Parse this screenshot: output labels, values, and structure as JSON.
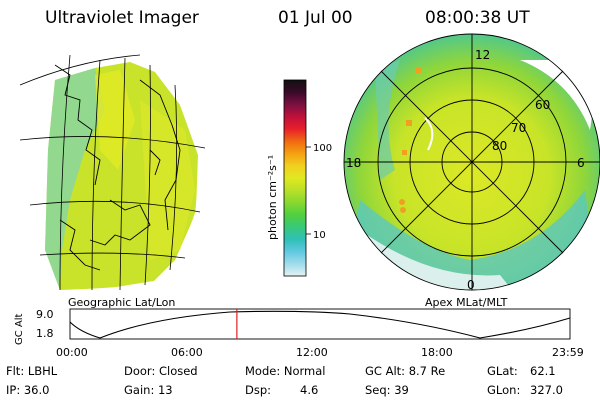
{
  "header": {
    "instrument": "Ultraviolet Imager",
    "date": "01 Jul 00",
    "time": "08:00:38 UT"
  },
  "colorbar": {
    "unit_label": "photon cm⁻²s⁻¹",
    "tick_labels": [
      "100",
      "10"
    ],
    "colors": [
      "#111111",
      "#3a0a2a",
      "#7a1040",
      "#c0103a",
      "#e8202a",
      "#f06a12",
      "#f5a010",
      "#f2d020",
      "#e0e820",
      "#b8e028",
      "#88d830",
      "#50d040",
      "#38c878",
      "#30c0b8",
      "#60c8e0",
      "#a0dcea",
      "#e4f2f4"
    ]
  },
  "left_panel": {
    "label": "Geographic Lat/Lon"
  },
  "right_panel": {
    "label": "Apex MLat/MLT",
    "lat_labels": [
      "80",
      "70",
      "60"
    ],
    "mlt_labels": [
      "12",
      "18",
      "6",
      "0"
    ]
  },
  "orbit_plot": {
    "ylabel": "GC Alt",
    "y_ticks": [
      "9.0",
      "1.8"
    ],
    "x_ticks": [
      "00:00",
      "06:00",
      "12:00",
      "18:00",
      "23:59"
    ],
    "current_time_hours": 8.01
  },
  "info": {
    "flt": "Flt: LBHL",
    "door": "Door: Closed",
    "mode": "Mode: Normal",
    "gc_alt": "GC Alt: 8.7 Re",
    "glat_label": "GLat:",
    "glat_value": "62.1",
    "ip": "IP: 36.0",
    "gain": "Gain: 13",
    "dsp_label": "Dsp:",
    "dsp_value": "4.6",
    "seq": "Seq: 39",
    "glon_label": "GLon:",
    "glon_value": "327.0"
  }
}
